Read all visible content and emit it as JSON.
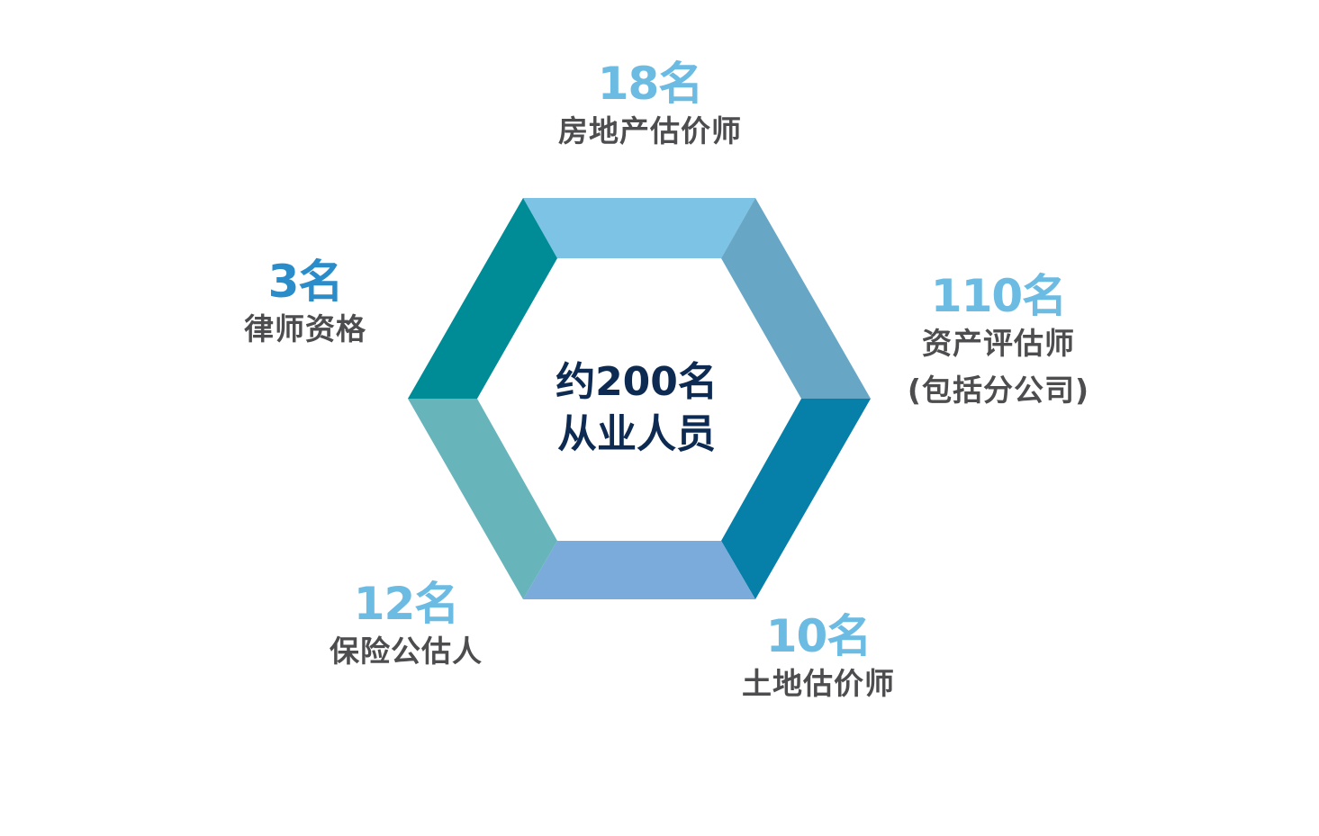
{
  "center": {
    "line1": "约200名",
    "line2": "从业人员"
  },
  "segments": [
    {
      "name": "real-estate-appraisers",
      "count": "18名",
      "label": "房地产估价师",
      "count_color": "#6bbbe3",
      "segment_color": "#7dc3e6"
    },
    {
      "name": "asset-appraisers",
      "count": "110名",
      "label": "资产评估师",
      "label2": "(包括分公司)",
      "count_color": "#6bbbe3",
      "segment_color": "#67a7c5"
    },
    {
      "name": "land-appraisers",
      "count": "10名",
      "label": "土地估价师",
      "count_color": "#6bbbe3",
      "segment_color": "#0680a9"
    },
    {
      "name": "insurance-adjusters",
      "count": "12名",
      "label": "保险公估人",
      "count_color": "#6bbbe3",
      "segment_color": "#7aabdb"
    },
    {
      "name": "lawyer-qualification",
      "count": "3名",
      "label": "律师资格",
      "count_color": "#2a8cc8",
      "segment_color": "#67b5ba"
    },
    {
      "name": "extra-segment",
      "segment_color": "#008c96"
    }
  ]
}
